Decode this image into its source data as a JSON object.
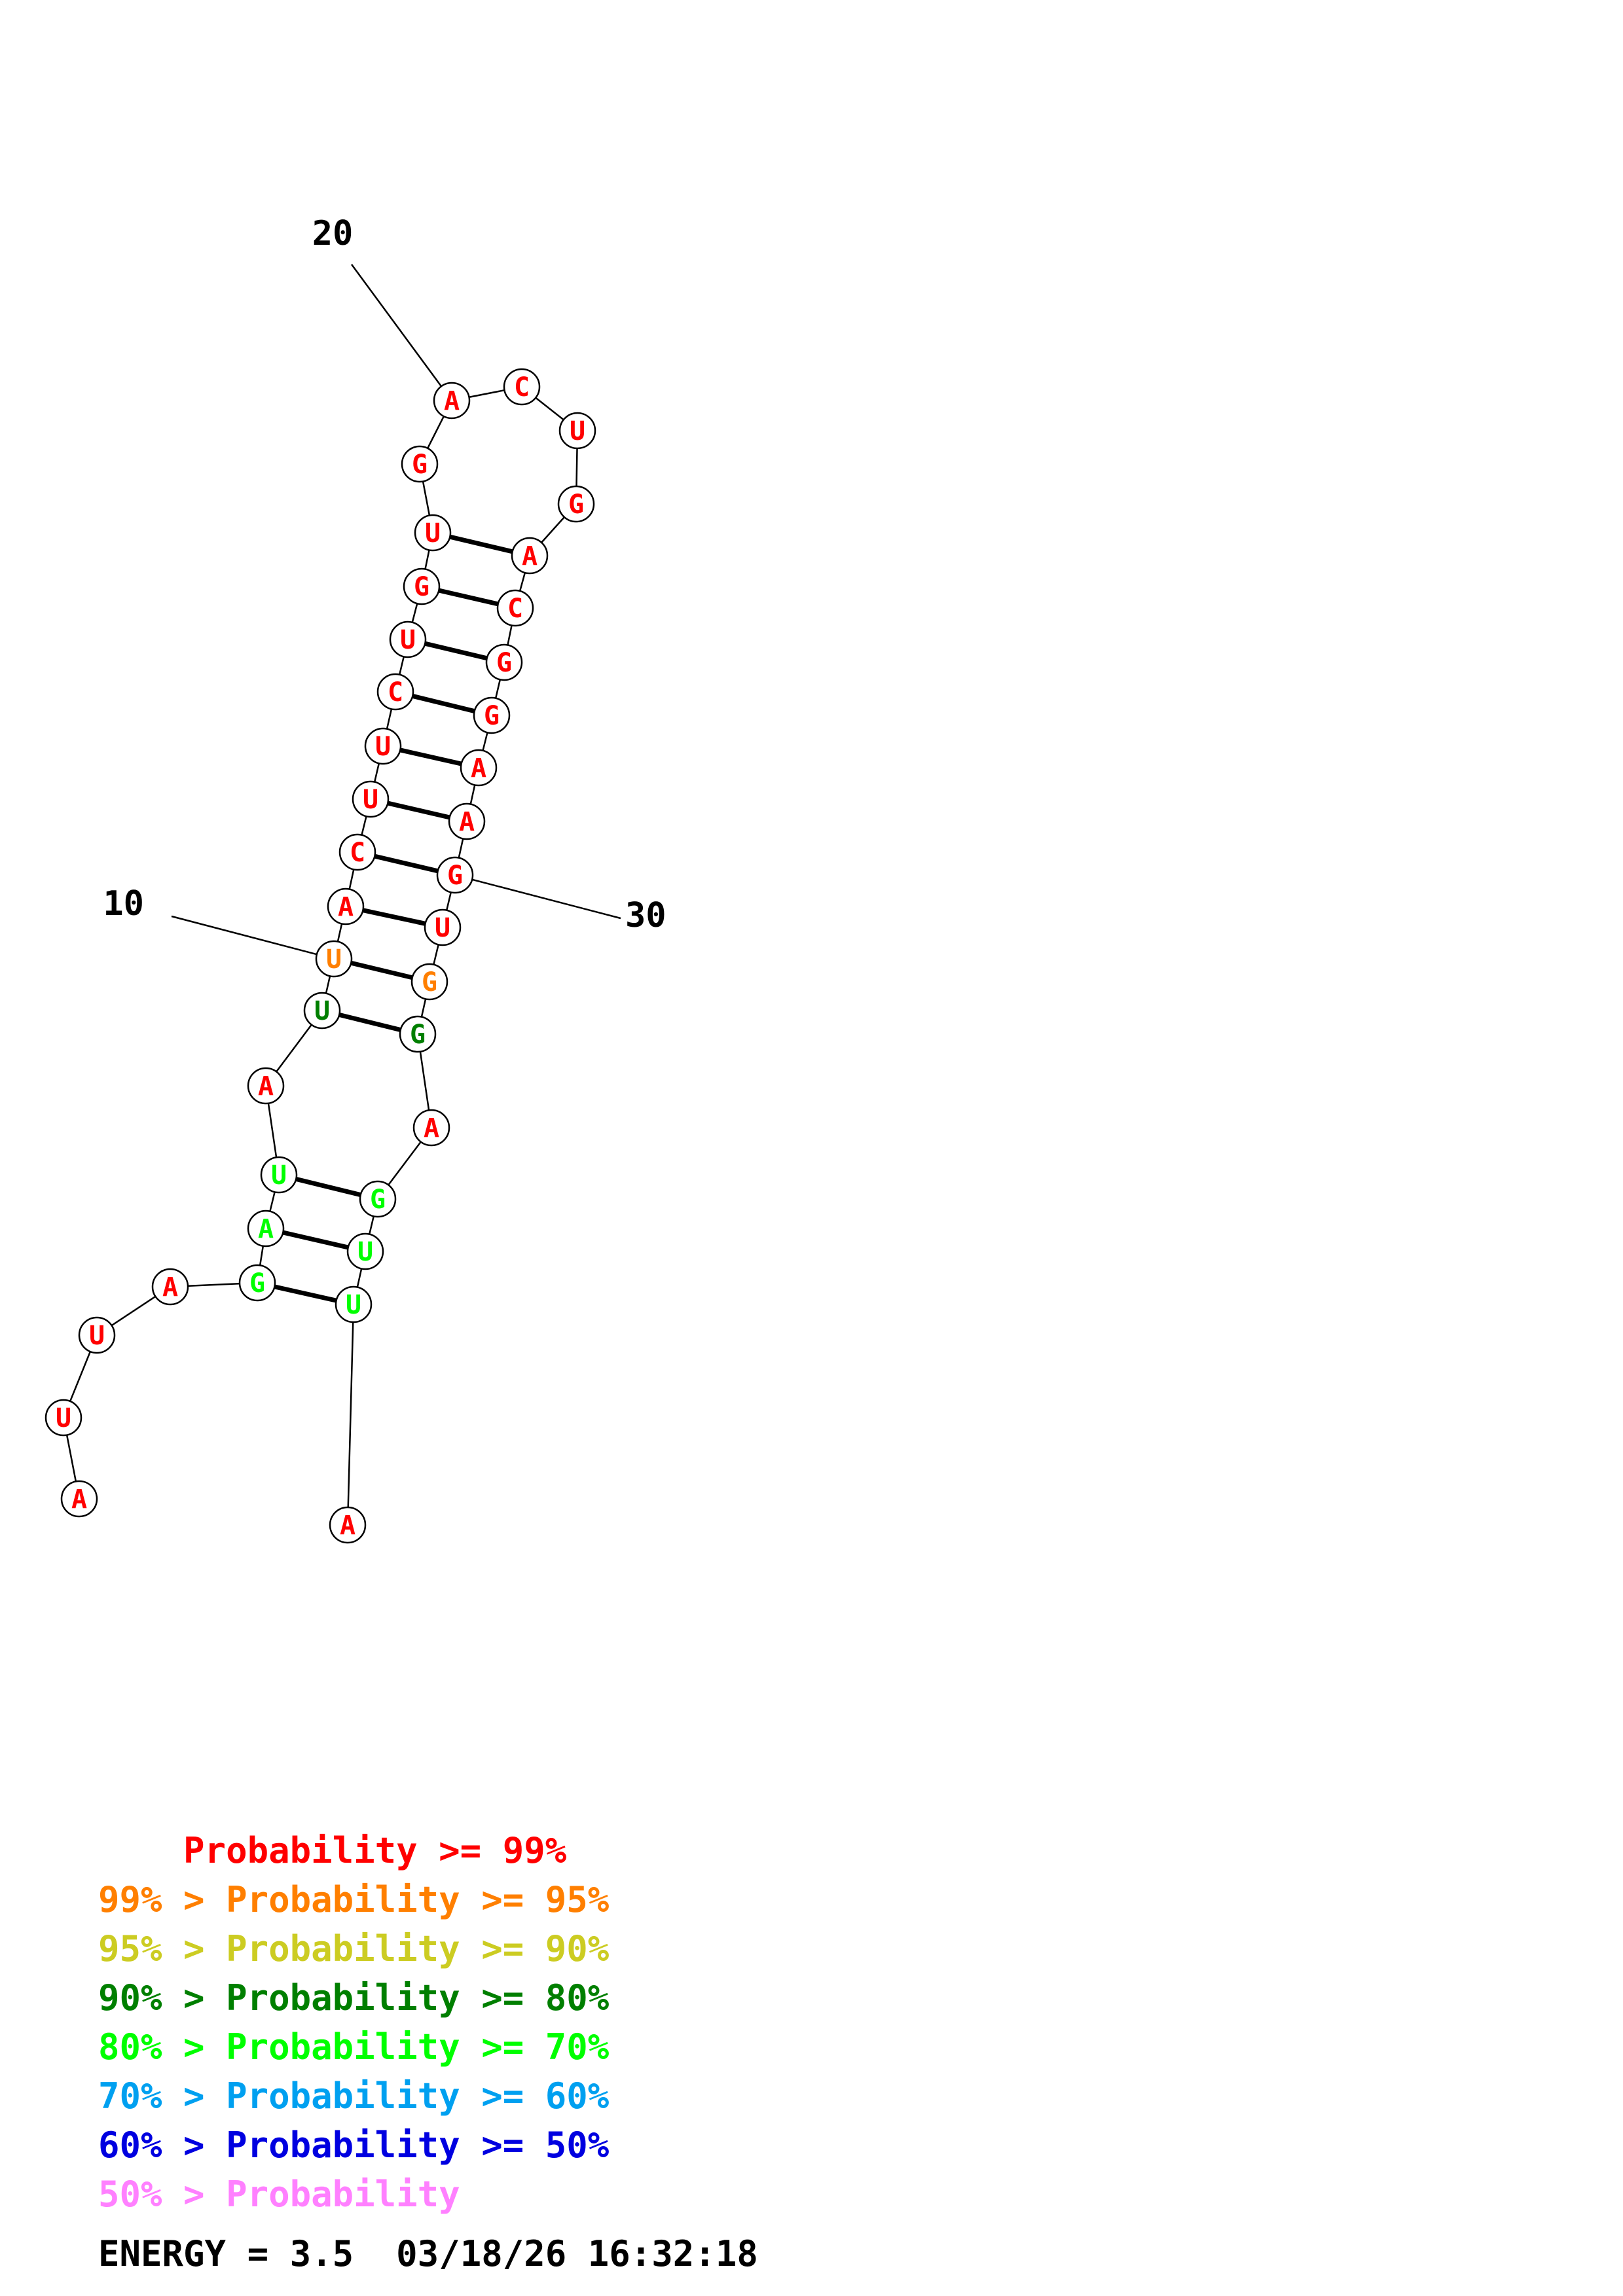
{
  "colors": {
    "p99": "#ff0000",
    "p95": "#ff7f00",
    "p90": "#cccc22",
    "p80": "#007f00",
    "p70": "#00ff00",
    "p60": "#00a0f0",
    "p50": "#0000e0",
    "plow": "#ff80ff"
  },
  "nucleotides": [
    {
      "n": 1,
      "base": "A",
      "c": "p99"
    },
    {
      "n": 2,
      "base": "U",
      "c": "p99"
    },
    {
      "n": 3,
      "base": "U",
      "c": "p99"
    },
    {
      "n": 4,
      "base": "A",
      "c": "p99"
    },
    {
      "n": 5,
      "base": "G",
      "c": "p70"
    },
    {
      "n": 6,
      "base": "A",
      "c": "p70"
    },
    {
      "n": 7,
      "base": "U",
      "c": "p70"
    },
    {
      "n": 8,
      "base": "A",
      "c": "p99"
    },
    {
      "n": 9,
      "base": "U",
      "c": "p80"
    },
    {
      "n": 10,
      "base": "U",
      "c": "p95"
    },
    {
      "n": 11,
      "base": "A",
      "c": "p99"
    },
    {
      "n": 12,
      "base": "C",
      "c": "p99"
    },
    {
      "n": 13,
      "base": "U",
      "c": "p99"
    },
    {
      "n": 14,
      "base": "U",
      "c": "p99"
    },
    {
      "n": 15,
      "base": "C",
      "c": "p99"
    },
    {
      "n": 16,
      "base": "U",
      "c": "p99"
    },
    {
      "n": 17,
      "base": "G",
      "c": "p99"
    },
    {
      "n": 18,
      "base": "U",
      "c": "p99"
    },
    {
      "n": 19,
      "base": "G",
      "c": "p99"
    },
    {
      "n": 20,
      "base": "A",
      "c": "p99"
    },
    {
      "n": 21,
      "base": "C",
      "c": "p99"
    },
    {
      "n": 22,
      "base": "U",
      "c": "p99"
    },
    {
      "n": 23,
      "base": "G",
      "c": "p99"
    },
    {
      "n": 24,
      "base": "A",
      "c": "p99"
    },
    {
      "n": 25,
      "base": "C",
      "c": "p99"
    },
    {
      "n": 26,
      "base": "G",
      "c": "p99"
    },
    {
      "n": 27,
      "base": "G",
      "c": "p99"
    },
    {
      "n": 28,
      "base": "A",
      "c": "p99"
    },
    {
      "n": 29,
      "base": "A",
      "c": "p99"
    },
    {
      "n": 30,
      "base": "G",
      "c": "p99"
    },
    {
      "n": 31,
      "base": "U",
      "c": "p99"
    },
    {
      "n": 32,
      "base": "G",
      "c": "p95"
    },
    {
      "n": 33,
      "base": "G",
      "c": "p80"
    },
    {
      "n": 34,
      "base": "A",
      "c": "p99"
    },
    {
      "n": 35,
      "base": "G",
      "c": "p70"
    },
    {
      "n": 36,
      "base": "U",
      "c": "p70"
    },
    {
      "n": 37,
      "base": "U",
      "c": "p70"
    },
    {
      "n": 38,
      "base": "A",
      "c": "p99"
    }
  ],
  "pairs": [
    [
      5,
      37
    ],
    [
      6,
      36
    ],
    [
      7,
      35
    ],
    [
      9,
      33
    ],
    [
      10,
      32
    ],
    [
      11,
      31
    ],
    [
      12,
      30
    ],
    [
      13,
      29
    ],
    [
      14,
      28
    ],
    [
      15,
      27
    ],
    [
      16,
      26
    ],
    [
      17,
      25
    ],
    [
      18,
      24
    ]
  ],
  "tick_labels": [
    {
      "n": 10,
      "text": "10"
    },
    {
      "n": 20,
      "text": "20"
    },
    {
      "n": 30,
      "text": "30"
    }
  ],
  "legend": [
    {
      "prefix": "    ",
      "text": "Probability >= 99%",
      "c": "p99"
    },
    {
      "prefix": "99% > ",
      "text": "Probability >= 95%",
      "c": "p95"
    },
    {
      "prefix": "95% > ",
      "text": "Probability >= 90%",
      "c": "p90"
    },
    {
      "prefix": "90% > ",
      "text": "Probability >= 80%",
      "c": "p80"
    },
    {
      "prefix": "80% > ",
      "text": "Probability >= 70%",
      "c": "p70"
    },
    {
      "prefix": "70% > ",
      "text": "Probability >= 60%",
      "c": "p60"
    },
    {
      "prefix": "60% > ",
      "text": "Probability >= 50%",
      "c": "p50"
    },
    {
      "prefix": "50% > ",
      "text": "Probability",
      "c": "plow"
    }
  ],
  "footer": {
    "energy": "ENERGY = 3.5",
    "timestamp": "03/18/26 16:32:18"
  }
}
